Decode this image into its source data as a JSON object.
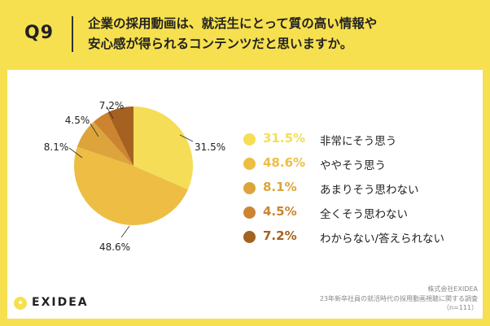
{
  "question": {
    "number": "Q9",
    "line1": "企業の採用動画は、就活生にとって質の高い情報や",
    "line2": "安心感が得られるコンテンツだと思いますか。"
  },
  "chart_data": {
    "type": "pie",
    "title": "企業の採用動画は、就活生にとって質の高い情報や安心感が得られるコンテンツだと思いますか。",
    "categories": [
      "非常にそう思う",
      "ややそう思う",
      "あまりそう思わない",
      "全くそう思わない",
      "わからない/答えられない"
    ],
    "values": [
      31.5,
      48.6,
      8.1,
      4.5,
      7.2
    ],
    "value_labels": [
      "31.5%",
      "48.6%",
      "8.1%",
      "4.5%",
      "7.2%"
    ],
    "colors": [
      "#f5dd57",
      "#edbe43",
      "#dca43a",
      "#cc8431",
      "#a5611f"
    ],
    "legend_position": "right"
  },
  "brand": {
    "logo_text": "EXIDEA"
  },
  "source": {
    "company": "株式会社EXIDEA",
    "survey": "23年新卒社員の就活時代の採用動画視聴に関する調査",
    "n": "（n=111）"
  }
}
